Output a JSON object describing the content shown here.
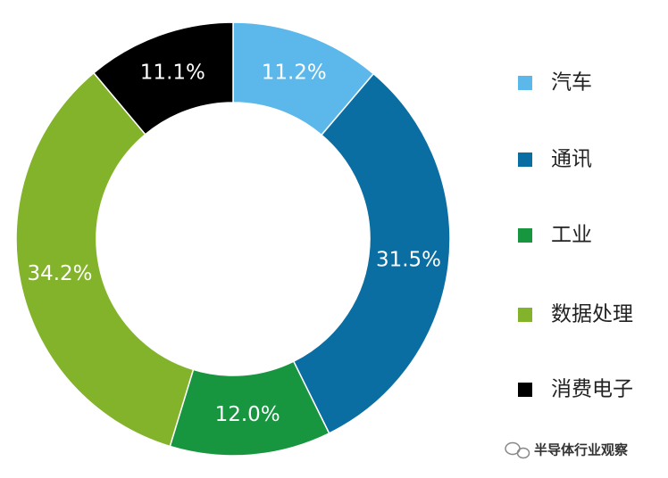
{
  "chart_data": {
    "type": "pie",
    "categories": [
      "汽车",
      "通讯",
      "工业",
      "数据处理",
      "消费电子"
    ],
    "values": [
      11.2,
      31.5,
      12.0,
      34.2,
      11.1
    ],
    "value_labels": [
      "11.2%",
      "31.5%",
      "12.0%",
      "34.2%",
      "11.1%"
    ],
    "colors": [
      "#5cb8ea",
      "#0b6ea3",
      "#17953f",
      "#83b32a",
      "#000000"
    ],
    "donut": true,
    "legend": "right",
    "watermark": "半导体行业观察"
  }
}
